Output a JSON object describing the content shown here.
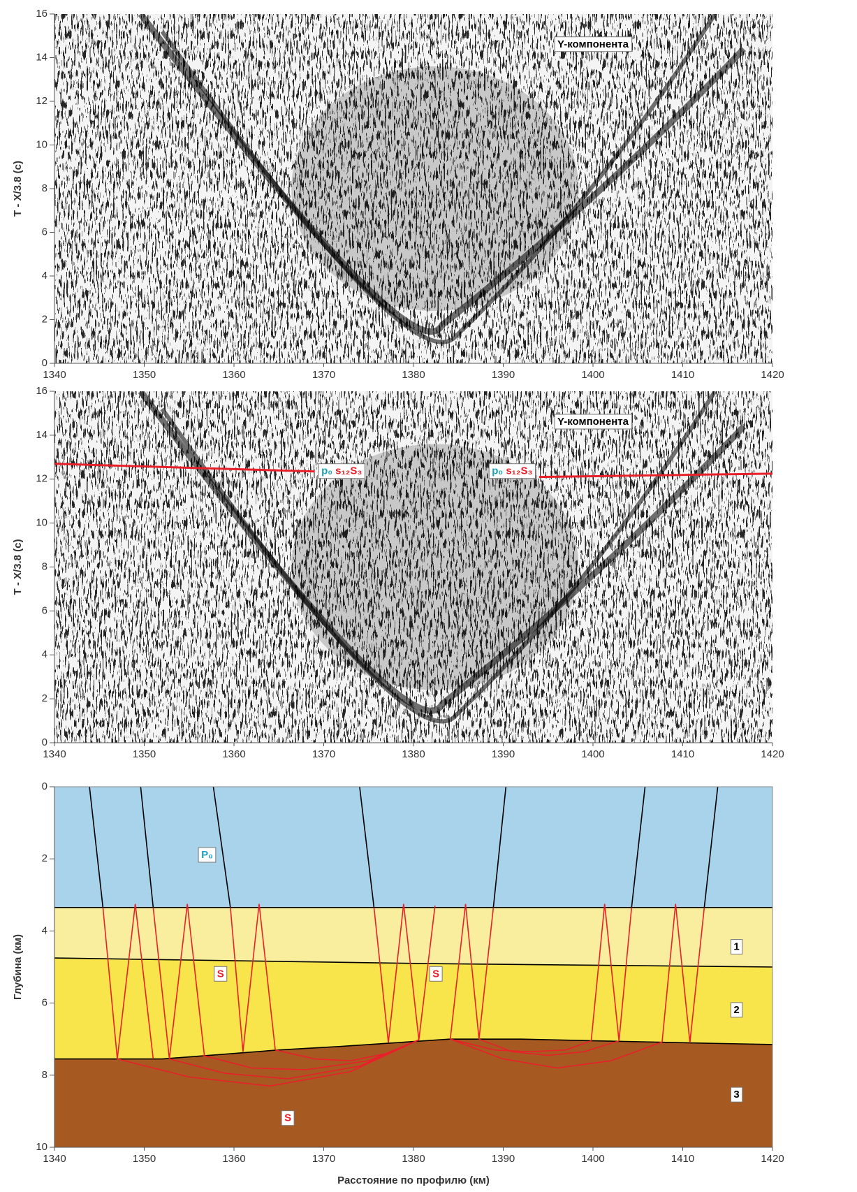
{
  "chart_data": [
    {
      "type": "image",
      "ylabel": "T - X/3.8 (c)",
      "xlim": [
        1340,
        1420
      ],
      "xticks": [
        1340,
        1350,
        1360,
        1370,
        1380,
        1390,
        1400,
        1410,
        1420
      ],
      "ylim": [
        0,
        16
      ],
      "yticks": [
        0,
        2,
        4,
        6,
        8,
        10,
        12,
        14,
        16
      ],
      "annotations": [
        {
          "x": 1400,
          "y": 14.6,
          "parts": [
            {
              "text": "Y-компонента",
              "color": "#000000"
            }
          ]
        }
      ]
    },
    {
      "type": "line",
      "ylabel": "T - X/3.8 (c)",
      "xlim": [
        1340,
        1420
      ],
      "xticks": [
        1340,
        1350,
        1360,
        1370,
        1380,
        1390,
        1400,
        1410,
        1420
      ],
      "ylim": [
        0,
        16
      ],
      "yticks": [
        0,
        2,
        4,
        6,
        8,
        10,
        12,
        14,
        16
      ],
      "series": [
        {
          "color": "#e8202a",
          "x": [
            1340,
            1369
          ],
          "values": [
            12.7,
            12.35
          ]
        },
        {
          "color": "#e8202a",
          "x": [
            1394,
            1420
          ],
          "values": [
            12.1,
            12.25
          ]
        }
      ],
      "annotations": [
        {
          "x": 1400,
          "y": 14.6,
          "parts": [
            {
              "text": "Y-компонента",
              "color": "#000000"
            }
          ]
        },
        {
          "x": 1372,
          "y": 12.35,
          "parts": [
            {
              "text": "p₀ ",
              "color": "#1aa3b3"
            },
            {
              "text": "s₁₂S₃",
              "color": "#e8202a"
            }
          ]
        },
        {
          "x": 1391,
          "y": 12.35,
          "parts": [
            {
              "text": "p₀ ",
              "color": "#1aa3b3"
            },
            {
              "text": "s₁₂S₃",
              "color": "#e8202a"
            }
          ]
        }
      ]
    },
    {
      "type": "line",
      "xlabel": "Расстояние по профилю (км)",
      "ylabel": "Глубина (км)",
      "xlim": [
        1340,
        1420
      ],
      "xticks": [
        1340,
        1350,
        1360,
        1370,
        1380,
        1390,
        1400,
        1410,
        1420
      ],
      "ylim": [
        10,
        0
      ],
      "yticks": [
        0,
        2,
        4,
        6,
        8,
        10
      ],
      "layer_colors": [
        "#a9d3ea",
        "#f9ee9e",
        "#f8e44b",
        "#a65a22"
      ],
      "series": [
        {
          "color": "#000000",
          "x": [
            1340,
            1420
          ],
          "values": [
            3.35,
            3.35
          ]
        },
        {
          "color": "#000000",
          "x": [
            1340,
            1380,
            1420
          ],
          "values": [
            4.75,
            4.9,
            5.0
          ]
        },
        {
          "color": "#000000",
          "x": [
            1340,
            1352,
            1365,
            1372,
            1384,
            1392,
            1410,
            1420
          ],
          "values": [
            7.55,
            7.55,
            7.3,
            7.2,
            7.0,
            7.0,
            7.1,
            7.15
          ]
        },
        {
          "color": "#000000",
          "x": [
            1343.9,
            1345.4
          ],
          "values": [
            0,
            3.35
          ]
        },
        {
          "color": "#000000",
          "x": [
            1349.6,
            1351.0
          ],
          "values": [
            0,
            3.35
          ]
        },
        {
          "color": "#000000",
          "x": [
            1357.7,
            1359.6
          ],
          "values": [
            0,
            3.35
          ]
        },
        {
          "color": "#000000",
          "x": [
            1374.0,
            1375.6
          ],
          "values": [
            0,
            3.35
          ]
        },
        {
          "color": "#000000",
          "x": [
            1390.3,
            1388.9
          ],
          "values": [
            0,
            3.35
          ]
        },
        {
          "color": "#000000",
          "x": [
            1405.8,
            1404.3
          ],
          "values": [
            0,
            3.35
          ]
        },
        {
          "color": "#000000",
          "x": [
            1413.9,
            1412.4
          ],
          "values": [
            0,
            3.35
          ]
        },
        {
          "color": "#e8202a",
          "x": [
            1345.4,
            1347.0,
            1349.0,
            1351.0
          ],
          "values": [
            3.35,
            7.55,
            3.25,
            7.55
          ]
        },
        {
          "color": "#e8202a",
          "x": [
            1351.0,
            1352.8,
            1354.8,
            1356.7
          ],
          "values": [
            3.35,
            7.55,
            3.25,
            7.45
          ]
        },
        {
          "color": "#e8202a",
          "x": [
            1359.6,
            1361.0,
            1362.8,
            1364.6
          ],
          "values": [
            3.35,
            7.35,
            3.25,
            7.3
          ]
        },
        {
          "color": "#e8202a",
          "x": [
            1375.6,
            1377.2,
            1378.9,
            1380.6
          ],
          "values": [
            3.35,
            7.1,
            3.25,
            7.02
          ]
        },
        {
          "color": "#e8202a",
          "x": [
            1380.6,
            1382.4
          ],
          "values": [
            7.02,
            3.3
          ]
        },
        {
          "color": "#e8202a",
          "x": [
            1384.1,
            1385.8,
            1387.3,
            1388.9
          ],
          "values": [
            7.0,
            3.25,
            7.0,
            3.35
          ]
        },
        {
          "color": "#e8202a",
          "x": [
            1399.8,
            1401.3,
            1402.9,
            1404.3
          ],
          "values": [
            7.05,
            3.25,
            7.05,
            3.35
          ]
        },
        {
          "color": "#e8202a",
          "x": [
            1407.7,
            1409.2,
            1410.8,
            1412.4
          ],
          "values": [
            7.08,
            3.25,
            7.1,
            3.35
          ]
        },
        {
          "color": "#e8202a",
          "x": [
            1347,
            1355,
            1364,
            1373,
            1380.6
          ],
          "values": [
            7.55,
            8.05,
            8.3,
            7.9,
            7.02
          ]
        },
        {
          "color": "#e8202a",
          "x": [
            1352.8,
            1359,
            1366,
            1374,
            1380.6
          ],
          "values": [
            7.55,
            7.95,
            8.1,
            7.75,
            7.02
          ]
        },
        {
          "color": "#e8202a",
          "x": [
            1356.5,
            1362,
            1368,
            1375,
            1380.6
          ],
          "values": [
            7.45,
            7.8,
            7.85,
            7.6,
            7.02
          ]
        },
        {
          "color": "#e8202a",
          "x": [
            1364.6,
            1369,
            1373,
            1377,
            1380.6
          ],
          "values": [
            7.3,
            7.55,
            7.6,
            7.4,
            7.02
          ]
        },
        {
          "color": "#e8202a",
          "x": [
            1384.1,
            1390,
            1396,
            1402,
            1407.7
          ],
          "values": [
            7.0,
            7.55,
            7.8,
            7.6,
            7.08
          ]
        },
        {
          "color": "#e8202a",
          "x": [
            1387.3,
            1391,
            1395,
            1399,
            1402.9
          ],
          "values": [
            7.0,
            7.35,
            7.45,
            7.35,
            7.05
          ]
        },
        {
          "color": "#e8202a",
          "x": [
            1384.1,
            1389,
            1393,
            1397,
            1399.8
          ],
          "values": [
            7.0,
            7.3,
            7.35,
            7.3,
            7.05
          ]
        }
      ],
      "annotations": [
        {
          "x": 1357,
          "y": 1.9,
          "parts": [
            {
              "text": "P₀",
              "color": "#1aa3c8"
            }
          ]
        },
        {
          "x": 1358.5,
          "y": 5.2,
          "parts": [
            {
              "text": "S",
              "color": "#e8202a"
            }
          ]
        },
        {
          "x": 1382.5,
          "y": 5.2,
          "parts": [
            {
              "text": "S",
              "color": "#e8202a"
            }
          ]
        },
        {
          "x": 1366,
          "y": 9.2,
          "parts": [
            {
              "text": "S",
              "color": "#e8202a"
            }
          ]
        },
        {
          "x": 1416,
          "y": 4.45,
          "parts": [
            {
              "text": "1",
              "color": "#000000"
            }
          ]
        },
        {
          "x": 1416,
          "y": 6.2,
          "parts": [
            {
              "text": "2",
              "color": "#000000"
            }
          ]
        },
        {
          "x": 1416,
          "y": 8.55,
          "parts": [
            {
              "text": "3",
              "color": "#000000"
            }
          ]
        }
      ]
    }
  ]
}
